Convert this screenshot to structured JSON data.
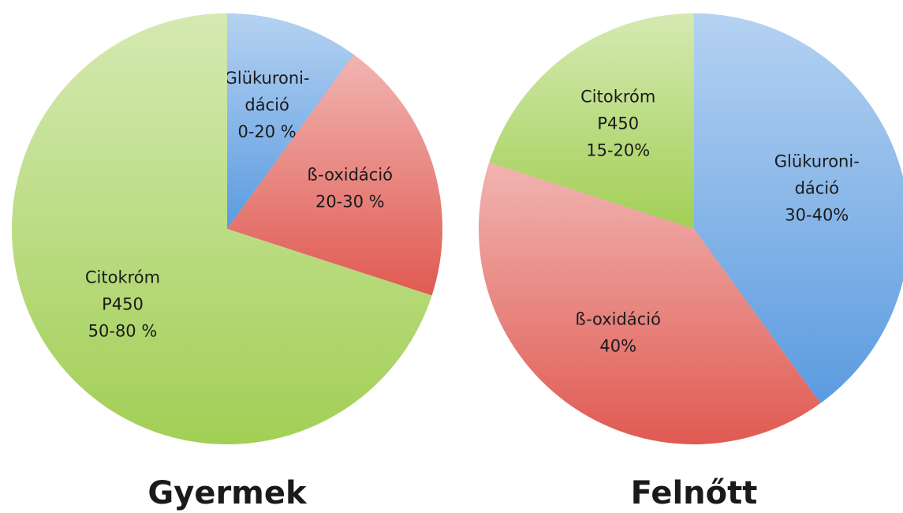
{
  "chart_data": [
    {
      "type": "pie",
      "title": "Gyermek",
      "categories": [
        [
          "Glükuroni-",
          "dáció"
        ],
        [
          "ß-oxidáció"
        ],
        [
          "Citokróm",
          "P450"
        ]
      ],
      "values": [
        10,
        20,
        70
      ],
      "value_labels": [
        "0-20 %",
        "20-30 %",
        "50-80 %"
      ],
      "colors": [
        "#5b9be0",
        "#e05a52",
        "#a2cf55"
      ]
    },
    {
      "type": "pie",
      "title": "Felnőtt",
      "categories": [
        [
          "Glükuroni-",
          "dáció"
        ],
        [
          "ß-oxidáció"
        ],
        [
          "Citokróm",
          "P450"
        ]
      ],
      "values": [
        40,
        40,
        20
      ],
      "value_labels": [
        "30-40%",
        "40%",
        "15-20%"
      ],
      "colors": [
        "#5b9be0",
        "#e05a52",
        "#a2cf55"
      ]
    }
  ]
}
